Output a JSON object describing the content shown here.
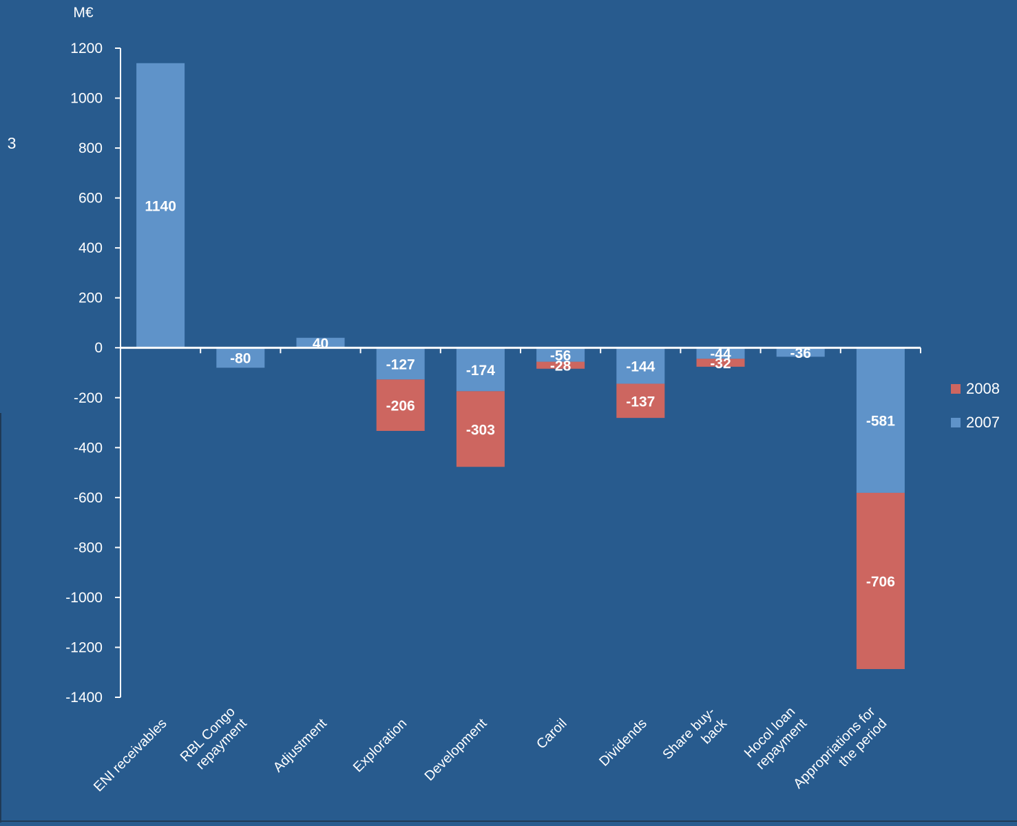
{
  "page_marker": "3",
  "chart_data": {
    "type": "bar",
    "stacked": true,
    "unit_label": "M€",
    "categories": [
      "ENI receivables",
      "RBL Congo repayment",
      "Adjustment",
      "Exploration",
      "Development",
      "Caroil",
      "Dividends",
      "Share buy-back",
      "Hocol loan repayment",
      "Appropriations for the period"
    ],
    "category_lines": [
      [
        "ENI receivables"
      ],
      [
        "RBL Congo",
        "repayment"
      ],
      [
        "Adjustment"
      ],
      [
        "Exploration"
      ],
      [
        "Development"
      ],
      [
        "Caroil"
      ],
      [
        "Dividends"
      ],
      [
        "Share buy-",
        "back"
      ],
      [
        "Hocol loan",
        "repayment"
      ],
      [
        "Appropriations for",
        "the period"
      ]
    ],
    "series": [
      {
        "name": "2007",
        "color": "#5f93c9",
        "values": [
          1140,
          -80,
          40,
          -127,
          -174,
          -56,
          -144,
          -44,
          -36,
          -581
        ]
      },
      {
        "name": "2008",
        "color": "#cd6660",
        "values": [
          null,
          null,
          null,
          -206,
          -303,
          -28,
          -137,
          -32,
          null,
          -706
        ]
      }
    ],
    "data_labels": {
      "2007": [
        "1140",
        "-80",
        "40",
        "-127",
        "-174",
        "-56",
        "-144",
        "-44",
        "-36",
        "-581"
      ],
      "2008": [
        "",
        "",
        "",
        "-206",
        "-303",
        "-28",
        "-137",
        "-32",
        "",
        "-706"
      ]
    },
    "ylim": [
      -1400,
      1200
    ],
    "yticks": [
      1200,
      1000,
      800,
      600,
      400,
      200,
      0,
      -200,
      -400,
      -600,
      -800,
      -1000,
      -1200,
      -1400
    ],
    "legend": {
      "position": "right",
      "order": [
        "2008",
        "2007"
      ]
    },
    "grid": false,
    "xlabel": "",
    "ylabel": ""
  },
  "colors": {
    "background": "#285b8e",
    "axis": "#ffffff",
    "text": "#ffffff"
  }
}
